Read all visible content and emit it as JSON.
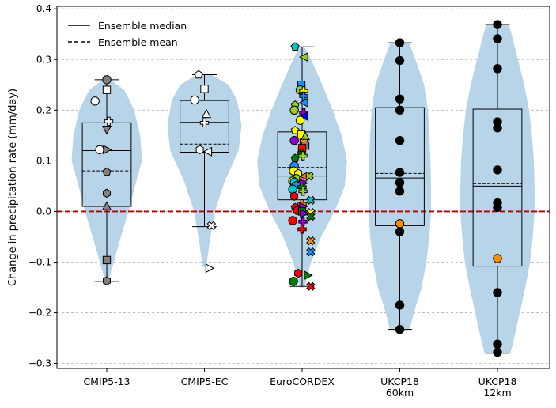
{
  "chart_data": {
    "type": "box-violin",
    "ylabel": "Change in precipitation rate (mm/day)",
    "xlabel": "",
    "title": "",
    "ylim": [
      -0.31,
      0.405
    ],
    "yticks": [
      -0.3,
      -0.2,
      -0.1,
      0.0,
      0.1,
      0.2,
      0.3,
      0.4
    ],
    "ytick_labels": [
      "−0.3",
      "−0.2",
      "−0.1",
      "0.0",
      "0.1",
      "0.2",
      "0.3",
      "0.4"
    ],
    "grid": "y",
    "zero_line": {
      "value": 0.0,
      "color": "#b00000",
      "style": "dashed"
    },
    "legend": {
      "placement": "top-left",
      "entries": [
        {
          "label": "Ensemble median",
          "style": "solid"
        },
        {
          "label": "Ensemble mean",
          "style": "dashed"
        }
      ]
    },
    "violin_color": "#b8d4e8",
    "groups": [
      {
        "label_lines": [
          "CMIP5-13"
        ],
        "box": {
          "q1": 0.01,
          "median": 0.12,
          "q3": 0.175,
          "whisker_low": -0.138,
          "whisker_high": 0.26
        },
        "mean": 0.08,
        "violin_max_halfwidth": 0.36,
        "violin_profile": [
          [
            -0.138,
            0.04
          ],
          [
            -0.1,
            0.2
          ],
          [
            -0.05,
            0.4
          ],
          [
            0.0,
            0.62
          ],
          [
            0.05,
            0.8
          ],
          [
            0.1,
            1.0
          ],
          [
            0.15,
            0.95
          ],
          [
            0.2,
            0.78
          ],
          [
            0.24,
            0.5
          ],
          [
            0.26,
            0.1
          ]
        ],
        "points": [
          {
            "y": 0.26,
            "marker": "circle",
            "color": "#808080",
            "dx": 0
          },
          {
            "y": 0.24,
            "marker": "square",
            "color": "#ffffff",
            "dx": 0
          },
          {
            "y": 0.218,
            "marker": "circle",
            "color": "#ffffff",
            "dx": -0.3
          },
          {
            "y": 0.178,
            "marker": "plus",
            "color": "#ffffff",
            "dx": 0.05
          },
          {
            "y": 0.162,
            "marker": "tri-down",
            "color": "#808080",
            "dx": 0
          },
          {
            "y": 0.122,
            "marker": "circle",
            "color": "#ffffff",
            "dx": -0.18
          },
          {
            "y": 0.122,
            "marker": "tri-right",
            "color": "#808080",
            "dx": 0
          },
          {
            "y": 0.078,
            "marker": "pentagon",
            "color": "#808080",
            "dx": 0
          },
          {
            "y": 0.036,
            "marker": "hexagon",
            "color": "#808080",
            "dx": 0
          },
          {
            "y": 0.01,
            "marker": "tri-up",
            "color": "#808080",
            "dx": 0
          },
          {
            "y": -0.096,
            "marker": "square",
            "color": "#808080",
            "dx": 0
          },
          {
            "y": -0.137,
            "marker": "hexagon",
            "color": "#808080",
            "dx": 0
          }
        ]
      },
      {
        "label_lines": [
          "CMIP5-EC"
        ],
        "box": {
          "q1": 0.117,
          "median": 0.176,
          "q3": 0.219,
          "whisker_low": -0.03,
          "whisker_high": 0.27
        },
        "mean": 0.133,
        "violin_max_halfwidth": 0.38,
        "violin_profile": [
          [
            -0.11,
            0.05
          ],
          [
            -0.06,
            0.14
          ],
          [
            0.0,
            0.28
          ],
          [
            0.06,
            0.55
          ],
          [
            0.12,
            0.92
          ],
          [
            0.17,
            1.0
          ],
          [
            0.22,
            0.88
          ],
          [
            0.25,
            0.65
          ],
          [
            0.27,
            0.2
          ]
        ],
        "points": [
          {
            "y": 0.27,
            "marker": "pentagon",
            "color": "#ffffff",
            "dx": -0.15
          },
          {
            "y": 0.242,
            "marker": "square",
            "color": "#ffffff",
            "dx": 0
          },
          {
            "y": 0.22,
            "marker": "circle",
            "color": "#ffffff",
            "dx": -0.25
          },
          {
            "y": 0.192,
            "marker": "tri-up",
            "color": "#ffffff",
            "dx": 0.05
          },
          {
            "y": 0.175,
            "marker": "plus",
            "color": "#ffffff",
            "dx": 0
          },
          {
            "y": 0.122,
            "marker": "hexagon",
            "color": "#ffffff",
            "dx": -0.12
          },
          {
            "y": 0.118,
            "marker": "tri-left",
            "color": "#ffffff",
            "dx": 0.1
          },
          {
            "y": -0.028,
            "marker": "x",
            "color": "#ffffff",
            "dx": 0.18
          },
          {
            "y": -0.112,
            "marker": "tri-right",
            "color": "#ffffff",
            "dx": 0.12
          }
        ]
      },
      {
        "label_lines": [
          "EuroCORDEX"
        ],
        "box": {
          "q1": 0.023,
          "median": 0.07,
          "q3": 0.157,
          "whisker_low": -0.148,
          "whisker_high": 0.325
        },
        "mean": 0.087,
        "violin_max_halfwidth": 0.46,
        "violin_profile": [
          [
            -0.15,
            0.05
          ],
          [
            -0.1,
            0.2
          ],
          [
            -0.05,
            0.42
          ],
          [
            0.0,
            0.72
          ],
          [
            0.05,
            0.95
          ],
          [
            0.1,
            1.0
          ],
          [
            0.15,
            0.88
          ],
          [
            0.2,
            0.68
          ],
          [
            0.25,
            0.45
          ],
          [
            0.3,
            0.2
          ],
          [
            0.325,
            0.05
          ]
        ],
        "points": [
          {
            "y": 0.325,
            "marker": "pentagon",
            "color": "#00c8c8",
            "dx": -0.18
          },
          {
            "y": 0.305,
            "marker": "tri-left",
            "color": "#9acd32",
            "dx": 0.06
          },
          {
            "y": 0.25,
            "marker": "square",
            "color": "#1e90ff",
            "dx": -0.02
          },
          {
            "y": 0.24,
            "marker": "circle",
            "color": "#9acd32",
            "dx": -0.05
          },
          {
            "y": 0.238,
            "marker": "plus",
            "color": "#ffff00",
            "dx": 0.04
          },
          {
            "y": 0.228,
            "marker": "plus",
            "color": "#1e90ff",
            "dx": 0.04
          },
          {
            "y": 0.215,
            "marker": "tri-left",
            "color": "#1e90ff",
            "dx": 0.06
          },
          {
            "y": 0.21,
            "marker": "pentagon",
            "color": "#9acd32",
            "dx": -0.18
          },
          {
            "y": 0.2,
            "marker": "circle",
            "color": "#9acd32",
            "dx": -0.2
          },
          {
            "y": 0.195,
            "marker": "plus",
            "color": "#9400d3",
            "dx": 0.04
          },
          {
            "y": 0.188,
            "marker": "tri-left",
            "color": "#0000ff",
            "dx": 0.06
          },
          {
            "y": 0.18,
            "marker": "circle",
            "color": "#ffff00",
            "dx": -0.05
          },
          {
            "y": 0.16,
            "marker": "pentagon",
            "color": "#ffff00",
            "dx": -0.18
          },
          {
            "y": 0.152,
            "marker": "square",
            "color": "#ffff00",
            "dx": -0.02
          },
          {
            "y": 0.148,
            "marker": "tri-up",
            "color": "#9acd32",
            "dx": 0.08
          },
          {
            "y": 0.14,
            "marker": "circle",
            "color": "#9400d3",
            "dx": -0.2
          },
          {
            "y": 0.135,
            "marker": "square",
            "color": "#ff8c00",
            "dx": 0.04
          },
          {
            "y": 0.13,
            "marker": "square",
            "color": "#808080",
            "dx": 0.08
          },
          {
            "y": 0.125,
            "marker": "square",
            "color": "#ff0000",
            "dx": 0
          },
          {
            "y": 0.115,
            "marker": "plus",
            "color": "#008000",
            "dx": -0.02
          },
          {
            "y": 0.11,
            "marker": "plus",
            "color": "#9acd32",
            "dx": 0.02
          },
          {
            "y": 0.105,
            "marker": "pentagon",
            "color": "#008000",
            "dx": -0.18
          },
          {
            "y": 0.09,
            "marker": "circle",
            "color": "#1e90ff",
            "dx": -0.2
          },
          {
            "y": 0.08,
            "marker": "circle",
            "color": "#ffff00",
            "dx": -0.22
          },
          {
            "y": 0.075,
            "marker": "hexagon",
            "color": "#ffff00",
            "dx": -0.1
          },
          {
            "y": 0.07,
            "marker": "x",
            "color": "#9acd32",
            "dx": 0.18
          },
          {
            "y": 0.068,
            "marker": "tri-left",
            "color": "#ff8c00",
            "dx": 0.02
          },
          {
            "y": 0.065,
            "marker": "circle",
            "color": "#9acd32",
            "dx": -0.15
          },
          {
            "y": 0.062,
            "marker": "tri-right",
            "color": "#ff69b4",
            "dx": 0.02
          },
          {
            "y": 0.06,
            "marker": "circle",
            "color": "#ffff00",
            "dx": -0.24
          },
          {
            "y": 0.058,
            "marker": "circle",
            "color": "#00c8c8",
            "dx": -0.2
          },
          {
            "y": 0.056,
            "marker": "tri-right",
            "color": "#9400d3",
            "dx": 0.02
          },
          {
            "y": 0.052,
            "marker": "pentagon",
            "color": "#1e90ff",
            "dx": -0.15
          },
          {
            "y": 0.048,
            "marker": "plus",
            "color": "#008000",
            "dx": 0
          },
          {
            "y": 0.044,
            "marker": "circle",
            "color": "#00c8c8",
            "dx": -0.24
          },
          {
            "y": 0.04,
            "marker": "plus",
            "color": "#9acd32",
            "dx": 0.02
          },
          {
            "y": 0.03,
            "marker": "hexagon",
            "color": "#ff0000",
            "dx": -0.2
          },
          {
            "y": 0.022,
            "marker": "x",
            "color": "#00c8c8",
            "dx": 0.22
          },
          {
            "y": 0.015,
            "marker": "plus",
            "color": "#ff8c00",
            "dx": 0
          },
          {
            "y": 0.01,
            "marker": "tri-right",
            "color": "#9400d3",
            "dx": 0.02
          },
          {
            "y": 0.008,
            "marker": "pentagon",
            "color": "#ff0000",
            "dx": -0.18
          },
          {
            "y": 0.002,
            "marker": "circle",
            "color": "#ff0000",
            "dx": -0.12
          },
          {
            "y": 0.0,
            "marker": "square",
            "color": "#008000",
            "dx": 0
          },
          {
            "y": -0.002,
            "marker": "x",
            "color": "#ffff00",
            "dx": 0.22
          },
          {
            "y": -0.004,
            "marker": "tri-right",
            "color": "#9400d3",
            "dx": 0.04
          },
          {
            "y": -0.01,
            "marker": "x",
            "color": "#008000",
            "dx": 0.22
          },
          {
            "y": -0.018,
            "marker": "circle",
            "color": "#ff0000",
            "dx": -0.24
          },
          {
            "y": -0.02,
            "marker": "plus",
            "color": "#9400d3",
            "dx": 0.02
          },
          {
            "y": -0.035,
            "marker": "plus",
            "color": "#ff0000",
            "dx": 0
          },
          {
            "y": -0.058,
            "marker": "x",
            "color": "#ff8c00",
            "dx": 0.22
          },
          {
            "y": -0.08,
            "marker": "x",
            "color": "#1e90ff",
            "dx": 0.22
          },
          {
            "y": -0.122,
            "marker": "hexagon",
            "color": "#ff0000",
            "dx": -0.1
          },
          {
            "y": -0.126,
            "marker": "tri-right",
            "color": "#008000",
            "dx": 0.14
          },
          {
            "y": -0.138,
            "marker": "circle",
            "color": "#008000",
            "dx": -0.22
          },
          {
            "y": -0.148,
            "marker": "x",
            "color": "#ff0000",
            "dx": 0.22
          }
        ]
      },
      {
        "label_lines": [
          "UKCP18",
          "60km"
        ],
        "box": {
          "q1": -0.028,
          "median": 0.066,
          "q3": 0.205,
          "whisker_low": -0.233,
          "whisker_high": 0.333
        },
        "mean": 0.075,
        "violin_max_halfwidth": 0.32,
        "violin_profile": [
          [
            -0.233,
            0.32
          ],
          [
            -0.2,
            0.45
          ],
          [
            -0.15,
            0.7
          ],
          [
            -0.1,
            0.85
          ],
          [
            -0.05,
            0.95
          ],
          [
            0.0,
            1.0
          ],
          [
            0.05,
            1.0
          ],
          [
            0.1,
            0.98
          ],
          [
            0.15,
            0.95
          ],
          [
            0.2,
            0.9
          ],
          [
            0.25,
            0.78
          ],
          [
            0.3,
            0.5
          ],
          [
            0.333,
            0.3
          ]
        ],
        "points": [
          {
            "y": 0.333,
            "marker": "circle",
            "color": "#000000",
            "dx": 0
          },
          {
            "y": 0.298,
            "marker": "circle",
            "color": "#000000",
            "dx": 0
          },
          {
            "y": 0.222,
            "marker": "circle",
            "color": "#000000",
            "dx": 0
          },
          {
            "y": 0.2,
            "marker": "circle",
            "color": "#000000",
            "dx": 0
          },
          {
            "y": 0.14,
            "marker": "circle",
            "color": "#000000",
            "dx": 0
          },
          {
            "y": 0.077,
            "marker": "circle",
            "color": "#000000",
            "dx": 0
          },
          {
            "y": 0.057,
            "marker": "circle",
            "color": "#000000",
            "dx": 0
          },
          {
            "y": 0.04,
            "marker": "circle",
            "color": "#000000",
            "dx": 0
          },
          {
            "y": -0.024,
            "marker": "circle",
            "color": "#ff8c00",
            "dx": 0
          },
          {
            "y": -0.04,
            "marker": "circle",
            "color": "#000000",
            "dx": 0
          },
          {
            "y": -0.185,
            "marker": "circle",
            "color": "#000000",
            "dx": 0
          },
          {
            "y": -0.233,
            "marker": "circle",
            "color": "#000000",
            "dx": 0
          }
        ]
      },
      {
        "label_lines": [
          "UKCP18",
          "12km"
        ],
        "box": {
          "q1": -0.108,
          "median": 0.05,
          "q3": 0.202,
          "whisker_low": -0.28,
          "whisker_high": 0.369
        },
        "mean": 0.055,
        "violin_max_halfwidth": 0.38,
        "violin_profile": [
          [
            -0.28,
            0.35
          ],
          [
            -0.25,
            0.45
          ],
          [
            -0.2,
            0.6
          ],
          [
            -0.15,
            0.75
          ],
          [
            -0.1,
            0.88
          ],
          [
            -0.05,
            0.95
          ],
          [
            0.0,
            1.0
          ],
          [
            0.05,
            1.0
          ],
          [
            0.1,
            0.98
          ],
          [
            0.15,
            0.93
          ],
          [
            0.2,
            0.85
          ],
          [
            0.25,
            0.72
          ],
          [
            0.3,
            0.55
          ],
          [
            0.35,
            0.38
          ],
          [
            0.369,
            0.3
          ]
        ],
        "points": [
          {
            "y": 0.369,
            "marker": "circle",
            "color": "#000000",
            "dx": 0
          },
          {
            "y": 0.341,
            "marker": "circle",
            "color": "#000000",
            "dx": 0
          },
          {
            "y": 0.282,
            "marker": "circle",
            "color": "#000000",
            "dx": 0
          },
          {
            "y": 0.177,
            "marker": "circle",
            "color": "#000000",
            "dx": 0
          },
          {
            "y": 0.165,
            "marker": "circle",
            "color": "#000000",
            "dx": 0
          },
          {
            "y": 0.082,
            "marker": "circle",
            "color": "#000000",
            "dx": 0
          },
          {
            "y": 0.017,
            "marker": "circle",
            "color": "#000000",
            "dx": 0
          },
          {
            "y": 0.008,
            "marker": "circle",
            "color": "#000000",
            "dx": 0
          },
          {
            "y": -0.093,
            "marker": "circle",
            "color": "#ff8c00",
            "dx": 0
          },
          {
            "y": -0.16,
            "marker": "circle",
            "color": "#000000",
            "dx": 0
          },
          {
            "y": -0.262,
            "marker": "circle",
            "color": "#000000",
            "dx": 0
          },
          {
            "y": -0.278,
            "marker": "circle",
            "color": "#000000",
            "dx": 0
          }
        ]
      }
    ]
  }
}
